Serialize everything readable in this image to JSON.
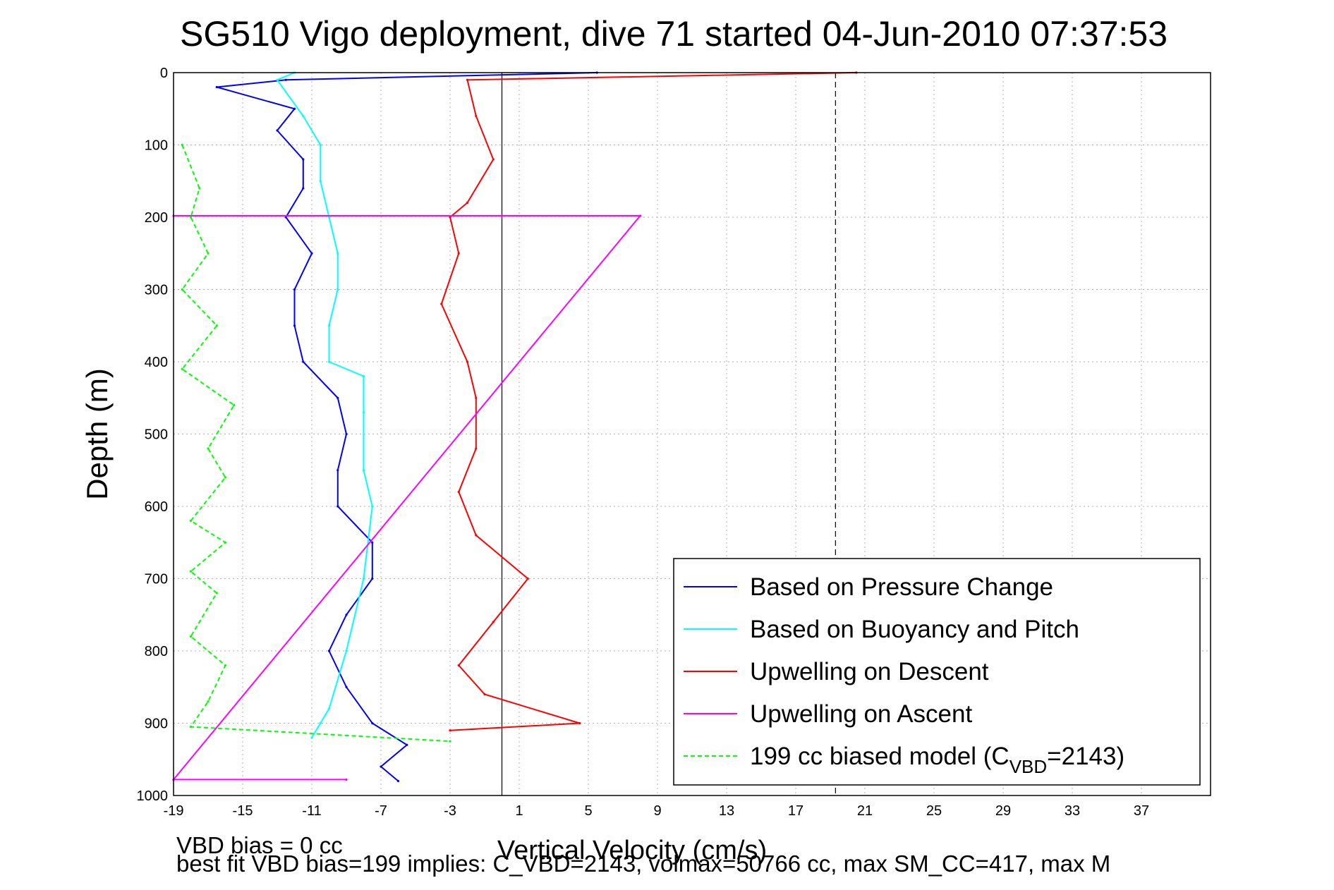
{
  "chart_data": {
    "type": "line",
    "title": "SG510 Vigo deployment, dive 71 started 04-Jun-2010 07:37:53",
    "xlabel": "Vertical Velocity (cm/s)",
    "ylabel": "Depth (m)",
    "xlim": [
      -19,
      41
    ],
    "ylim": [
      1000,
      0
    ],
    "y_reversed": true,
    "xticks": [
      -19,
      -15,
      -11,
      -7,
      -3,
      1,
      5,
      9,
      13,
      17,
      21,
      25,
      29,
      33,
      37
    ],
    "yticks": [
      0,
      100,
      200,
      300,
      400,
      500,
      600,
      700,
      800,
      900,
      1000
    ],
    "grid": true,
    "legend_position": "lower-right",
    "series": [
      {
        "name": "Based on Pressure Change",
        "color": "#0000ff",
        "style": "solid",
        "points": [
          {
            "x": 5.5,
            "y": 0
          },
          {
            "x": -12.5,
            "y": 10
          },
          {
            "x": -16.5,
            "y": 20
          },
          {
            "x": -12,
            "y": 50
          },
          {
            "x": -13,
            "y": 80
          },
          {
            "x": -11.5,
            "y": 120
          },
          {
            "x": -11.5,
            "y": 160
          },
          {
            "x": -12.5,
            "y": 200
          },
          {
            "x": -11,
            "y": 250
          },
          {
            "x": -12,
            "y": 300
          },
          {
            "x": -12,
            "y": 350
          },
          {
            "x": -11.5,
            "y": 400
          },
          {
            "x": -9.5,
            "y": 450
          },
          {
            "x": -9,
            "y": 500
          },
          {
            "x": -9.5,
            "y": 550
          },
          {
            "x": -9.5,
            "y": 600
          },
          {
            "x": -7.5,
            "y": 650
          },
          {
            "x": -7.5,
            "y": 700
          },
          {
            "x": -9,
            "y": 750
          },
          {
            "x": -10,
            "y": 800
          },
          {
            "x": -9,
            "y": 850
          },
          {
            "x": -7.5,
            "y": 900
          },
          {
            "x": -5.5,
            "y": 930
          },
          {
            "x": -7,
            "y": 960
          },
          {
            "x": -6,
            "y": 980
          }
        ]
      },
      {
        "name": "Based on Buoyancy and Pitch",
        "color": "#00ffff",
        "style": "solid",
        "points": [
          {
            "x": -12,
            "y": 0
          },
          {
            "x": -13,
            "y": 10
          },
          {
            "x": -11.5,
            "y": 60
          },
          {
            "x": -10.5,
            "y": 100
          },
          {
            "x": -10.5,
            "y": 150
          },
          {
            "x": -10,
            "y": 200
          },
          {
            "x": -9.5,
            "y": 250
          },
          {
            "x": -9.5,
            "y": 300
          },
          {
            "x": -10,
            "y": 350
          },
          {
            "x": -10,
            "y": 400
          },
          {
            "x": -8,
            "y": 420
          },
          {
            "x": -8,
            "y": 470
          },
          {
            "x": -8,
            "y": 550
          },
          {
            "x": -7.5,
            "y": 600
          },
          {
            "x": -8,
            "y": 700
          },
          {
            "x": -9,
            "y": 800
          },
          {
            "x": -10,
            "y": 880
          },
          {
            "x": -10.5,
            "y": 900
          },
          {
            "x": -11,
            "y": 920
          }
        ]
      },
      {
        "name": "Upwelling on Descent",
        "color": "#ff0000",
        "style": "solid",
        "points": [
          {
            "x": 20.5,
            "y": 0
          },
          {
            "x": -2,
            "y": 10
          },
          {
            "x": -1.5,
            "y": 60
          },
          {
            "x": -0.5,
            "y": 120
          },
          {
            "x": -2,
            "y": 180
          },
          {
            "x": -3,
            "y": 200
          },
          {
            "x": -2.5,
            "y": 250
          },
          {
            "x": -3.5,
            "y": 320
          },
          {
            "x": -2,
            "y": 400
          },
          {
            "x": -1.5,
            "y": 450
          },
          {
            "x": -1.5,
            "y": 520
          },
          {
            "x": -2.5,
            "y": 580
          },
          {
            "x": -1.5,
            "y": 640
          },
          {
            "x": 1.5,
            "y": 700
          },
          {
            "x": -0.5,
            "y": 760
          },
          {
            "x": -2.5,
            "y": 820
          },
          {
            "x": -1,
            "y": 860
          },
          {
            "x": 4.5,
            "y": 900
          },
          {
            "x": -3,
            "y": 910
          }
        ]
      },
      {
        "name": "Upwelling on Ascent",
        "color": "#ff00ff",
        "style": "solid",
        "points": [
          {
            "x": -19,
            "y": 198
          },
          {
            "x": 0,
            "y": 198
          },
          {
            "x": 8,
            "y": 198
          },
          {
            "x": -19,
            "y": 978
          },
          {
            "x": -9,
            "y": 978
          }
        ]
      },
      {
        "name": "199 cc biased model (C_VBD=2143)",
        "color": "#00ff00",
        "style": "dashed",
        "points": [
          {
            "x": -18.5,
            "y": 100
          },
          {
            "x": -17.5,
            "y": 160
          },
          {
            "x": -18,
            "y": 200
          },
          {
            "x": -17,
            "y": 250
          },
          {
            "x": -18.5,
            "y": 300
          },
          {
            "x": -16.5,
            "y": 350
          },
          {
            "x": -18.5,
            "y": 410
          },
          {
            "x": -15.5,
            "y": 460
          },
          {
            "x": -17,
            "y": 520
          },
          {
            "x": -16,
            "y": 560
          },
          {
            "x": -18,
            "y": 620
          },
          {
            "x": -16,
            "y": 650
          },
          {
            "x": -18,
            "y": 690
          },
          {
            "x": -16.5,
            "y": 720
          },
          {
            "x": -18,
            "y": 780
          },
          {
            "x": -16,
            "y": 820
          },
          {
            "x": -17,
            "y": 870
          },
          {
            "x": -18,
            "y": 905
          },
          {
            "x": -3,
            "y": 925
          }
        ]
      }
    ],
    "reference_lines": [
      {
        "orientation": "vertical",
        "x": 0,
        "style": "solid",
        "color": "#000000"
      },
      {
        "orientation": "vertical",
        "x": 19.3,
        "style": "dashed",
        "color": "#000000"
      }
    ],
    "legend_label_parts": {
      "prefix": "199 cc biased model (C",
      "subscript": "VBD",
      "suffix": "=2143)"
    },
    "notes": [
      "VBD bias = 0 cc",
      "best fit VBD bias=199 implies: C_VBD=2143, volmax=50766 cc, max SM_CC=417, max M"
    ]
  }
}
